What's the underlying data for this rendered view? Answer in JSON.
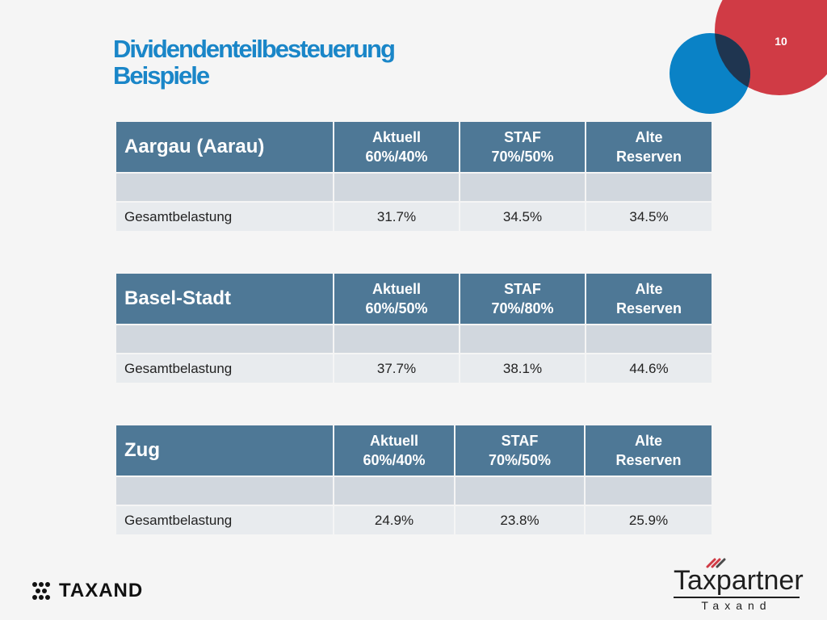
{
  "page": {
    "number": "10",
    "title_line1": "Dividendenteilbesteuerung",
    "title_line2": "Beispiele"
  },
  "tables": [
    {
      "region": "Aargau (Aarau)",
      "columns": [
        {
          "line1": "Aktuell",
          "line2": "60%/40%"
        },
        {
          "line1": "STAF",
          "line2": "70%/50%"
        },
        {
          "line1": "Alte",
          "line2": "Reserven"
        }
      ],
      "blank_row": [
        "",
        "",
        "",
        ""
      ],
      "result_label": "Gesamtbelastung",
      "result_values": [
        "31.7%",
        "34.5%",
        "34.5%"
      ]
    },
    {
      "region": "Basel-Stadt",
      "columns": [
        {
          "line1": "Aktuell",
          "line2": "60%/50%"
        },
        {
          "line1": "STAF",
          "line2": "70%/80%"
        },
        {
          "line1": "Alte",
          "line2": "Reserven"
        }
      ],
      "blank_row": [
        "",
        "",
        "",
        ""
      ],
      "result_label": "Gesamtbelastung",
      "result_values": [
        "37.7%",
        "38.1%",
        "44.6%"
      ]
    },
    {
      "region": "Zug",
      "columns": [
        {
          "line1": "Aktuell",
          "line2": "60%/40%"
        },
        {
          "line1": "STAF",
          "line2": "70%/50%"
        },
        {
          "line1": "Alte",
          "line2": "Reserven"
        }
      ],
      "blank_row": [
        "",
        "",
        "",
        ""
      ],
      "result_label": "Gesamtbelastung",
      "result_values": [
        "24.9%",
        "23.8%",
        "25.9%"
      ]
    }
  ],
  "logos": {
    "left_text": "TAXAND",
    "right_main": "Taxpartner",
    "right_sub": "Taxand"
  },
  "colors": {
    "title": "#1a86c8",
    "header": "#4e7896",
    "blank_row": "#d1d7de",
    "result_row": "#e8ebee",
    "red_circle": "#d03b45",
    "blue_circle": "#0a82c6",
    "overlap": "#1f3550"
  }
}
